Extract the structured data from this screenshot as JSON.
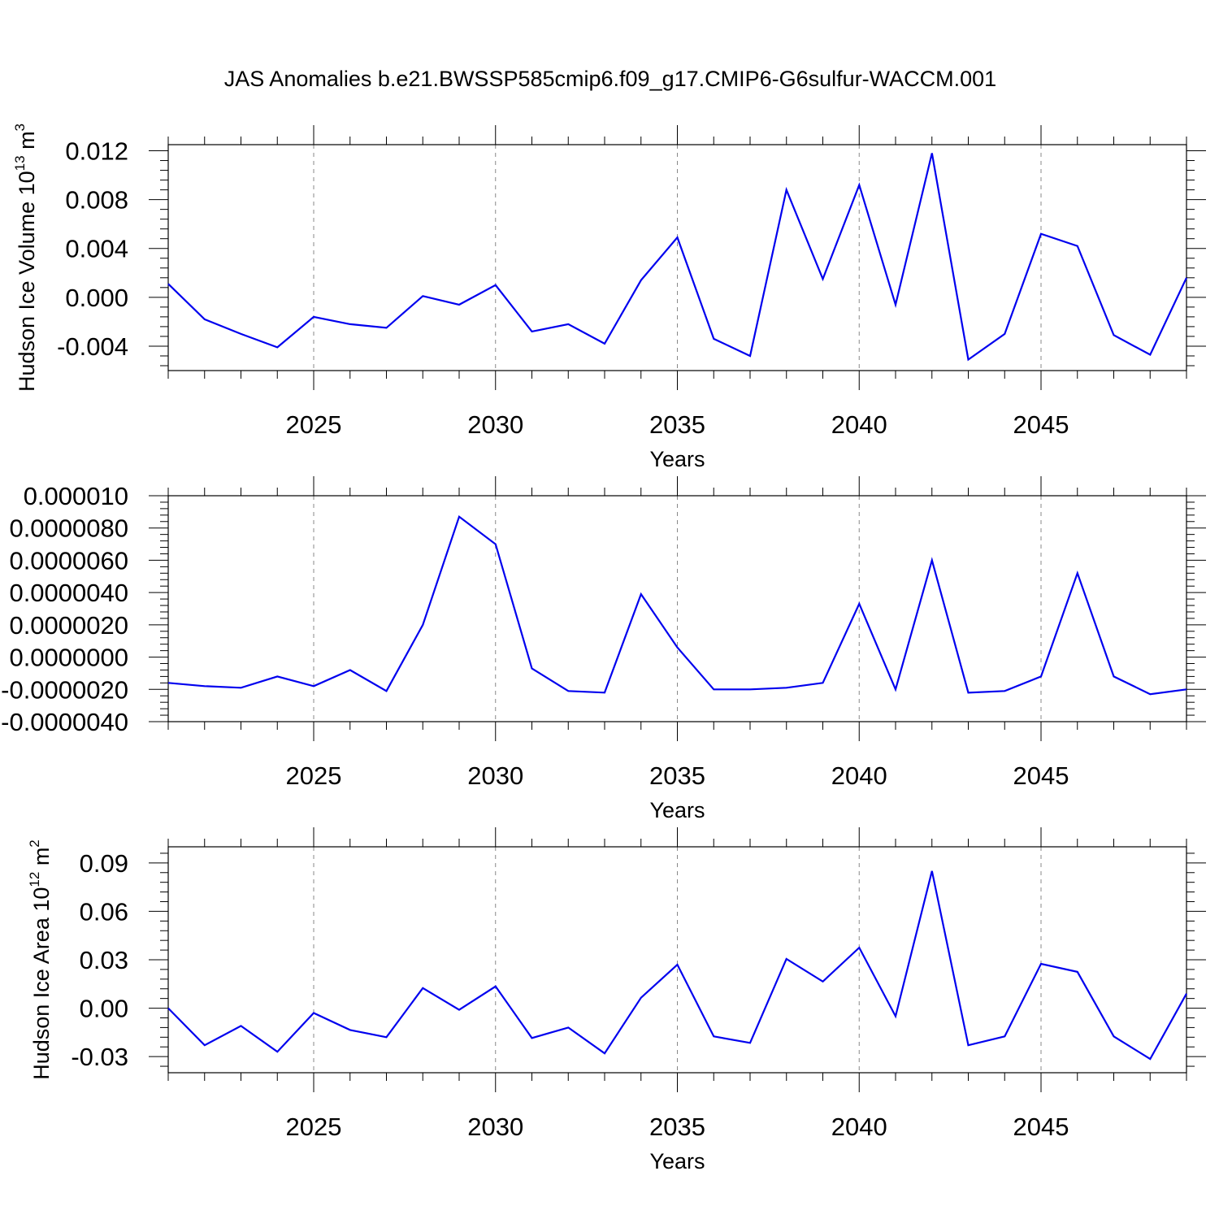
{
  "title": "JAS Anomalies b.e21.BWSSP585cmip6.f09_g17.CMIP6-G6sulfur-WACCM.001",
  "colors": {
    "line": "#0000ee",
    "axis": "#000000",
    "grid": "#888888"
  },
  "chart_data": [
    {
      "type": "line",
      "ylabel": "Hudson Ice Volume 10",
      "ylabel_exp": "13",
      "ylabel_unit": " m",
      "ylabel_unit_exp": "3",
      "xlabel": "Years",
      "xlim": [
        2021,
        2049
      ],
      "ylim": [
        -0.006,
        0.0125
      ],
      "yticks": [
        0.012,
        0.008,
        0.004,
        0.0,
        -0.004
      ],
      "ytick_labels": [
        "0.012",
        "0.008",
        "0.004",
        "0.000",
        "-0.004"
      ],
      "xticks": [
        2025,
        2030,
        2035,
        2040,
        2045
      ],
      "xtick_labels": [
        "2025",
        "2030",
        "2035",
        "2040",
        "2045"
      ],
      "grid": "vertical dashed at major x ticks",
      "x": [
        2021,
        2022,
        2023,
        2024,
        2025,
        2026,
        2027,
        2028,
        2029,
        2030,
        2031,
        2032,
        2033,
        2034,
        2035,
        2036,
        2037,
        2038,
        2039,
        2040,
        2041,
        2042,
        2043,
        2044,
        2045,
        2046,
        2047,
        2048,
        2049
      ],
      "values": [
        0.0011,
        -0.0018,
        -0.003,
        -0.0041,
        -0.0016,
        -0.0022,
        -0.0025,
        0.0001,
        -0.0006,
        0.001,
        -0.0028,
        -0.0022,
        -0.0038,
        0.0014,
        0.0049,
        -0.0034,
        -0.0048,
        0.0088,
        0.0015,
        0.0092,
        -0.0006,
        0.0118,
        -0.0051,
        -0.003,
        0.0052,
        0.0042,
        -0.0031,
        -0.0047,
        0.0016
      ]
    },
    {
      "type": "line",
      "ylabel": "",
      "xlabel": "Years",
      "xlim": [
        2021,
        2049
      ],
      "ylim": [
        -4e-06,
        1e-05
      ],
      "yticks": [
        1e-05,
        8e-06,
        6e-06,
        4e-06,
        2e-06,
        0.0,
        -2e-06,
        -4e-06
      ],
      "ytick_labels": [
        "0.000010",
        "0.0000080",
        "0.0000060",
        "0.0000040",
        "0.0000020",
        "0.0000000",
        "-0.0000020",
        "-0.0000040"
      ],
      "xticks": [
        2025,
        2030,
        2035,
        2040,
        2045
      ],
      "xtick_labels": [
        "2025",
        "2030",
        "2035",
        "2040",
        "2045"
      ],
      "grid": "vertical dashed at major x ticks",
      "x": [
        2021,
        2022,
        2023,
        2024,
        2025,
        2026,
        2027,
        2028,
        2029,
        2030,
        2031,
        2032,
        2033,
        2034,
        2035,
        2036,
        2037,
        2038,
        2039,
        2040,
        2041,
        2042,
        2043,
        2044,
        2045,
        2046,
        2047,
        2048,
        2049
      ],
      "values": [
        -1.6e-06,
        -1.8e-06,
        -1.9e-06,
        -1.2e-06,
        -1.8e-06,
        -8e-07,
        -2.1e-06,
        2e-06,
        8.7e-06,
        7e-06,
        -7e-07,
        -2.1e-06,
        -2.2e-06,
        3.9e-06,
        6e-07,
        -2e-06,
        -2e-06,
        -1.9e-06,
        -1.6e-06,
        3.3e-06,
        -2e-06,
        6e-06,
        -2.2e-06,
        -2.1e-06,
        -1.2e-06,
        5.2e-06,
        -1.2e-06,
        -2.3e-06,
        -2e-06
      ]
    },
    {
      "type": "line",
      "ylabel": "Hudson Ice Area 10",
      "ylabel_exp": "12",
      "ylabel_unit": " m",
      "ylabel_unit_exp": "2",
      "xlabel": "Years",
      "xlim": [
        2021,
        2049
      ],
      "ylim": [
        -0.04,
        0.1
      ],
      "yticks": [
        0.09,
        0.06,
        0.03,
        0.0,
        -0.03
      ],
      "ytick_labels": [
        "0.09",
        "0.06",
        "0.03",
        "0.00",
        "-0.03"
      ],
      "xticks": [
        2025,
        2030,
        2035,
        2040,
        2045
      ],
      "xtick_labels": [
        "2025",
        "2030",
        "2035",
        "2040",
        "2045"
      ],
      "grid": "vertical dashed at major x ticks",
      "x": [
        2021,
        2022,
        2023,
        2024,
        2025,
        2026,
        2027,
        2028,
        2029,
        2030,
        2031,
        2032,
        2033,
        2034,
        2035,
        2036,
        2037,
        2038,
        2039,
        2040,
        2041,
        2042,
        2043,
        2044,
        2045,
        2046,
        2047,
        2048,
        2049
      ],
      "values": [
        0.0,
        -0.023,
        -0.011,
        -0.027,
        -0.003,
        -0.0135,
        -0.018,
        0.0125,
        -0.001,
        0.0135,
        -0.0185,
        -0.012,
        -0.028,
        0.0065,
        0.027,
        -0.0175,
        -0.0215,
        0.0305,
        0.0165,
        0.0375,
        -0.005,
        0.085,
        -0.023,
        -0.0175,
        0.0275,
        0.0225,
        -0.0175,
        -0.0315,
        0.009
      ]
    }
  ]
}
